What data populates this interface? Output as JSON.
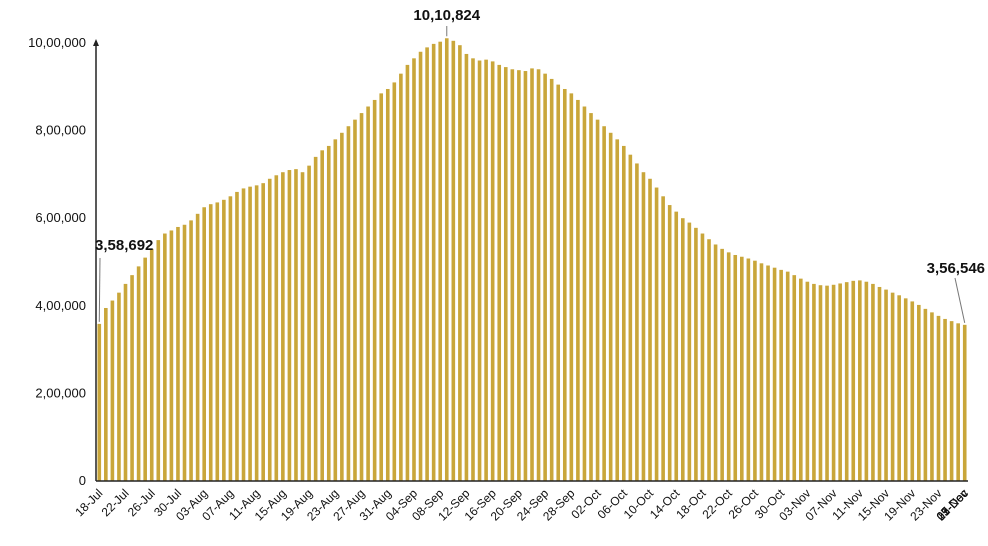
{
  "chart_data": {
    "type": "bar",
    "title": "",
    "xlabel": "",
    "ylabel": "",
    "ylim": [
      0,
      1000000
    ],
    "yticks": [
      0,
      200000,
      400000,
      600000,
      800000,
      1000000
    ],
    "ytick_labels": [
      "0",
      "2,00,000",
      "4,00,000",
      "6,00,000",
      "8,00,000",
      "10,00,000"
    ],
    "xtick_labels": [
      "18-Jul",
      "22-Jul",
      "26-Jul",
      "30-Jul",
      "03-Aug",
      "07-Aug",
      "11-Aug",
      "15-Aug",
      "19-Aug",
      "23-Aug",
      "27-Aug",
      "31-Aug",
      "04-Sep",
      "08-Sep",
      "12-Sep",
      "16-Sep",
      "20-Sep",
      "24-Sep",
      "28-Sep",
      "02-Oct",
      "06-Oct",
      "10-Oct",
      "14-Oct",
      "18-Oct",
      "22-Oct",
      "26-Oct",
      "30-Oct",
      "03-Nov",
      "07-Nov",
      "11-Nov",
      "15-Nov",
      "19-Nov",
      "23-Nov",
      "27-Nov",
      "01-Dec",
      "05-Dec",
      "09-Dec",
      "13-Dec"
    ],
    "x_start": "18-Jul",
    "x_end": "13-Dec",
    "bar_color": "#C9A63A",
    "grid": false,
    "values": [
      358692,
      395000,
      412000,
      430000,
      450000,
      470000,
      490000,
      510000,
      530000,
      550000,
      565000,
      572000,
      580000,
      585000,
      595000,
      610000,
      625000,
      632000,
      636000,
      642000,
      650000,
      660000,
      668000,
      672000,
      675000,
      680000,
      690000,
      698000,
      705000,
      710000,
      712000,
      705000,
      720000,
      740000,
      755000,
      765000,
      780000,
      795000,
      810000,
      825000,
      840000,
      855000,
      870000,
      885000,
      895000,
      910000,
      930000,
      950000,
      965000,
      980000,
      990000,
      998000,
      1003000,
      1010824,
      1005000,
      995000,
      975000,
      965000,
      960000,
      962000,
      958000,
      950000,
      945000,
      940000,
      938000,
      936000,
      942000,
      940000,
      930000,
      918000,
      905000,
      895000,
      885000,
      870000,
      855000,
      840000,
      825000,
      810000,
      795000,
      780000,
      765000,
      745000,
      725000,
      705000,
      690000,
      670000,
      650000,
      630000,
      615000,
      600000,
      590000,
      578000,
      565000,
      552000,
      540000,
      530000,
      522000,
      516000,
      512000,
      508000,
      503000,
      497000,
      492000,
      487000,
      482000,
      478000,
      470000,
      462000,
      455000,
      450000,
      447000,
      446000,
      448000,
      451000,
      454000,
      457000,
      458000,
      455000,
      450000,
      443000,
      437000,
      430000,
      424000,
      417000,
      410000,
      402000,
      393000,
      385000,
      377000,
      370000,
      365000,
      360000,
      356546
    ],
    "annotations": [
      {
        "label": "3,58,692",
        "x": "18-Jul",
        "value": 358692
      },
      {
        "label": "10,10,824",
        "x": "16-Sep",
        "value": 1010824
      },
      {
        "label": "3,56,546",
        "x": "13-Dec",
        "value": 356546
      }
    ]
  }
}
